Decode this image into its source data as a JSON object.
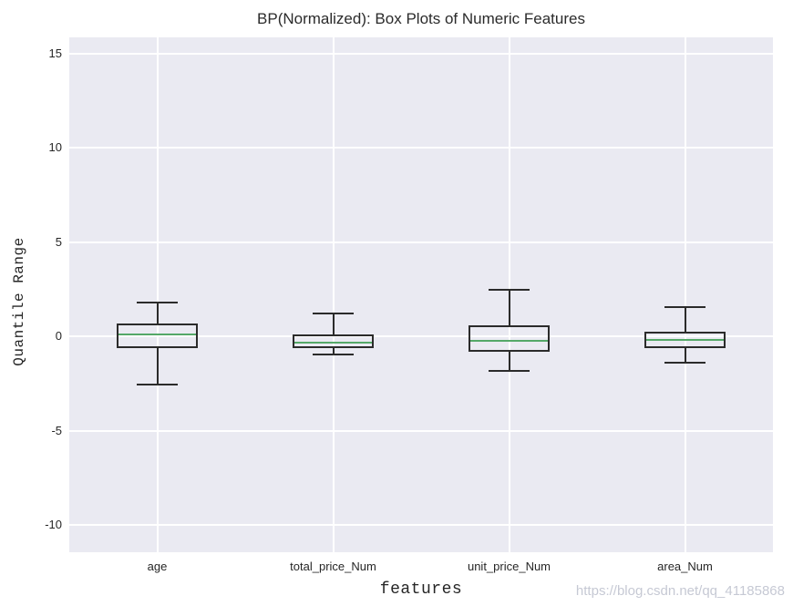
{
  "figure": {
    "watermark": "https://blog.csdn.net/qq_41185868"
  },
  "chart_data": {
    "type": "boxplot",
    "title": "BP(Normalized): Box Plots of Numeric Features",
    "xlabel": "features",
    "ylabel": "Quantile Range",
    "categories": [
      "age",
      "total_price_Num",
      "unit_price_Num",
      "area_Num"
    ],
    "series": [
      {
        "name": "age",
        "whislo": -2.55,
        "q1": -0.65,
        "med": 0.1,
        "q3": 0.68,
        "whishi": 1.8
      },
      {
        "name": "total_price_Num",
        "whislo": -0.95,
        "q1": -0.63,
        "med": -0.35,
        "q3": 0.1,
        "whishi": 1.2
      },
      {
        "name": "unit_price_Num",
        "whislo": -1.85,
        "q1": -0.8,
        "med": -0.22,
        "q3": 0.58,
        "whishi": 2.45
      },
      {
        "name": "area_Num",
        "whislo": -1.4,
        "q1": -0.65,
        "med": -0.19,
        "q3": 0.22,
        "whishi": 1.55
      }
    ],
    "yticks": [
      15,
      10,
      5,
      0,
      -5,
      -10
    ],
    "ylim": [
      -11.45,
      15.85
    ],
    "xlim": [
      -0.5,
      3.5
    ],
    "grid": true,
    "legend": false,
    "colors": {
      "plot_background": "#eaeaf2",
      "gridline": "#ffffff",
      "box_edge": "#2b2b2b",
      "median": "#55a868",
      "text": "#262626",
      "watermark": "#c6c9d4"
    }
  }
}
